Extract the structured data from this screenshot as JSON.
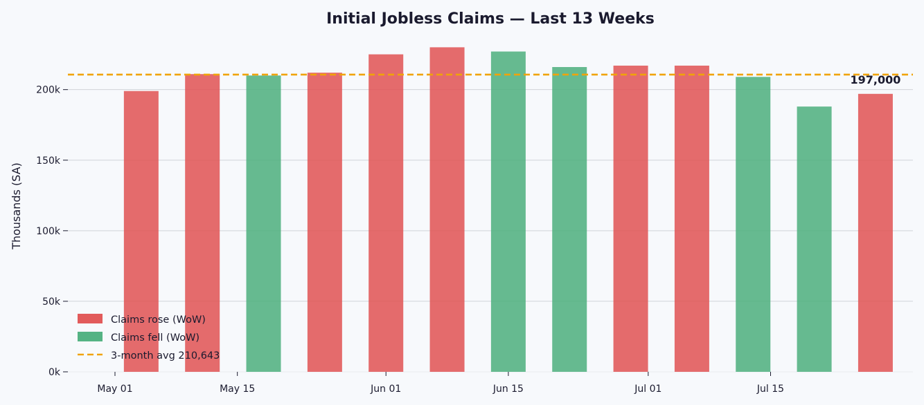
{
  "chart_data": {
    "type": "bar",
    "title": "Initial Jobless Claims — Last 13 Weeks",
    "xlabel": "",
    "ylabel": "Thousands (SA)",
    "ylim": [
      0,
      240000
    ],
    "x_dates": [
      "2024-05-04",
      "2024-05-11",
      "2024-05-18",
      "2024-05-25",
      "2024-06-01",
      "2024-06-08",
      "2024-06-15",
      "2024-06-22",
      "2024-06-29",
      "2024-07-06",
      "2024-07-13",
      "2024-07-20",
      "2024-07-27"
    ],
    "values": [
      199000,
      211000,
      210000,
      212000,
      225000,
      230000,
      227000,
      216000,
      217000,
      217000,
      209000,
      188000,
      197000
    ],
    "direction": [
      "rose",
      "rose",
      "fell",
      "rose",
      "rose",
      "rose",
      "fell",
      "fell",
      "rose",
      "rose",
      "fell",
      "fell",
      "rose"
    ],
    "x_ticks": [
      {
        "date": "2024-05-01",
        "label": "May 01"
      },
      {
        "date": "2024-05-15",
        "label": "May 15"
      },
      {
        "date": "2024-06-01",
        "label": "Jun 01"
      },
      {
        "date": "2024-06-15",
        "label": "Jun 15"
      },
      {
        "date": "2024-07-01",
        "label": "Jul 01"
      },
      {
        "date": "2024-07-15",
        "label": "Jul 15"
      }
    ],
    "y_ticks": [
      {
        "value": 0,
        "label": "0k"
      },
      {
        "value": 50000,
        "label": "50k"
      },
      {
        "value": 100000,
        "label": "100k"
      },
      {
        "value": 150000,
        "label": "150k"
      },
      {
        "value": 200000,
        "label": "200k"
      }
    ],
    "reference_line": {
      "value": 210643,
      "color": "#f0a30a",
      "style": "dashed"
    },
    "annotation": {
      "text": "197,000"
    },
    "legend": {
      "placement": "lower-left",
      "entries": [
        {
          "label": "Claims rose (WoW)",
          "kind": "rose"
        },
        {
          "label": "Claims fell (WoW)",
          "kind": "fell"
        },
        {
          "label": "3-month avg  210,643",
          "kind": "avg"
        }
      ]
    },
    "grid": {
      "y": true,
      "x": false
    },
    "colors": {
      "rose": "#e05252",
      "fell": "#4caf7d",
      "avg": "#f0a30a"
    }
  }
}
